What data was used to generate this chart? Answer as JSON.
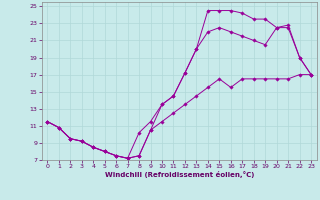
{
  "title": "",
  "xlabel": "Windchill (Refroidissement éolien,°C)",
  "ylabel": "",
  "bg_color": "#c8eaea",
  "grid_color": "#b0d8d8",
  "line_color": "#990099",
  "xlim": [
    -0.5,
    23.5
  ],
  "ylim": [
    7,
    25.5
  ],
  "xticks": [
    0,
    1,
    2,
    3,
    4,
    5,
    6,
    7,
    8,
    9,
    10,
    11,
    12,
    13,
    14,
    15,
    16,
    17,
    18,
    19,
    20,
    21,
    22,
    23
  ],
  "yticks": [
    7,
    9,
    11,
    13,
    15,
    17,
    19,
    21,
    23,
    25
  ],
  "line1_x": [
    0,
    1,
    2,
    3,
    4,
    5,
    6,
    7,
    8,
    9,
    10,
    11,
    12,
    13,
    14,
    15,
    16,
    17,
    18,
    19,
    20,
    21,
    22,
    23
  ],
  "line1_y": [
    11.5,
    10.8,
    9.5,
    9.2,
    8.5,
    8.0,
    7.5,
    7.2,
    7.5,
    10.5,
    13.5,
    14.5,
    17.2,
    20.0,
    24.5,
    24.5,
    24.5,
    24.2,
    23.5,
    23.5,
    22.5,
    22.8,
    19.0,
    17.0
  ],
  "line2_x": [
    0,
    1,
    2,
    3,
    4,
    5,
    6,
    7,
    8,
    9,
    10,
    11,
    12,
    13,
    14,
    15,
    16,
    17,
    18,
    19,
    20,
    21,
    22,
    23
  ],
  "line2_y": [
    11.5,
    10.8,
    9.5,
    9.2,
    8.5,
    8.0,
    7.5,
    7.2,
    10.2,
    11.5,
    13.5,
    14.5,
    17.2,
    20.0,
    22.0,
    22.5,
    22.0,
    21.5,
    21.0,
    20.5,
    22.5,
    22.5,
    19.0,
    17.0
  ],
  "line3_x": [
    0,
    1,
    2,
    3,
    4,
    5,
    6,
    7,
    8,
    9,
    10,
    11,
    12,
    13,
    14,
    15,
    16,
    17,
    18,
    19,
    20,
    21,
    22,
    23
  ],
  "line3_y": [
    11.5,
    10.8,
    9.5,
    9.2,
    8.5,
    8.0,
    7.5,
    7.2,
    7.5,
    10.5,
    11.5,
    12.5,
    13.5,
    14.5,
    15.5,
    16.5,
    15.5,
    16.5,
    16.5,
    16.5,
    16.5,
    16.5,
    17.0,
    17.0
  ],
  "tick_fontsize": 4.5,
  "xlabel_fontsize": 5.0,
  "marker_size": 1.8,
  "line_width": 0.7
}
